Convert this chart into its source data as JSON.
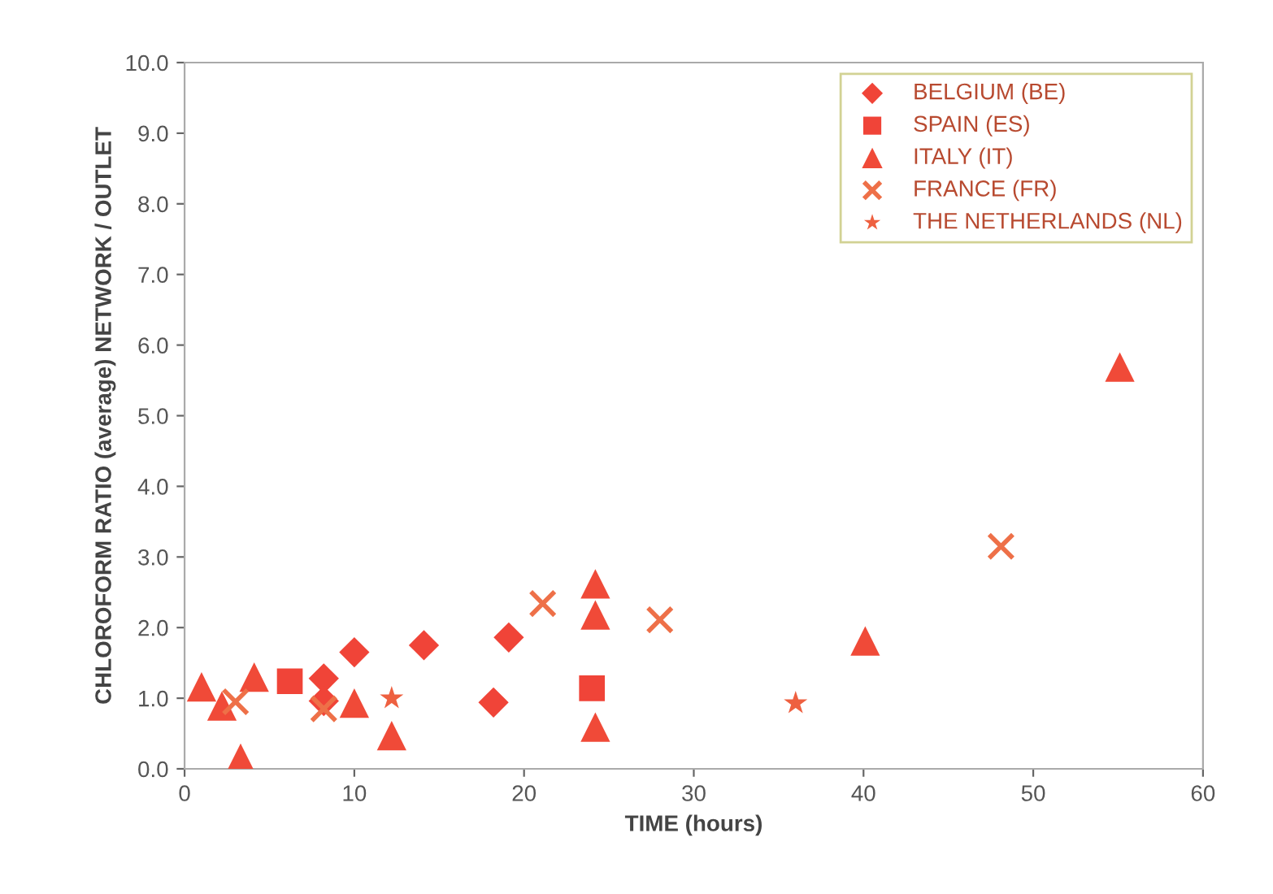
{
  "chart_data": {
    "type": "scatter",
    "xlabel": "TIME (hours)",
    "ylabel": "CHLOROFORM RATIO (average) NETWORK / OUTLET",
    "xlim": [
      0,
      60
    ],
    "ylim": [
      0,
      10
    ],
    "xticks": [
      0,
      10,
      20,
      30,
      40,
      50,
      60
    ],
    "yticks": [
      {
        "value": 0,
        "label": "0.0"
      },
      {
        "value": 1,
        "label": "1.0"
      },
      {
        "value": 2,
        "label": "2.0"
      },
      {
        "value": 3,
        "label": "3.0"
      },
      {
        "value": 4,
        "label": "4.0"
      },
      {
        "value": 5,
        "label": "5.0"
      },
      {
        "value": 6,
        "label": "6.0"
      },
      {
        "value": 7,
        "label": "7.0"
      },
      {
        "value": 8,
        "label": "8.0"
      },
      {
        "value": 9,
        "label": "9.0"
      },
      {
        "value": 10,
        "label": "10.0"
      }
    ],
    "grid": false,
    "legend": "top right",
    "series": [
      {
        "name": "BELGIUM (BE)",
        "color": "#f04438",
        "marker": "diamond",
        "x": [
          8.2,
          8.2,
          10,
          14.1,
          18.2,
          19.1
        ],
        "values": [
          1.28,
          0.96,
          1.65,
          1.75,
          0.94,
          1.86
        ]
      },
      {
        "name": "SPAIN (ES)",
        "color": "#f04438",
        "marker": "square",
        "x": [
          6.2,
          24
        ],
        "values": [
          1.24,
          1.14
        ]
      },
      {
        "name": "ITALY (IT)",
        "color": "#f04a38",
        "marker": "triangle",
        "x": [
          1,
          2.2,
          3.3,
          4.1,
          10,
          12.2,
          24.2,
          24.2,
          24.2,
          40.1,
          55.1
        ],
        "values": [
          1.16,
          0.89,
          0.15,
          1.3,
          0.93,
          0.47,
          2.62,
          2.18,
          0.59,
          1.81,
          5.69
        ]
      },
      {
        "name": "FRANCE (FR)",
        "color": "#ee7048",
        "marker": "cross",
        "x": [
          3,
          8.2,
          21.1,
          28,
          48.1
        ],
        "values": [
          0.95,
          0.85,
          2.34,
          2.11,
          3.15
        ]
      },
      {
        "name": "THE NETHERLANDS (NL)",
        "color": "#ee6040",
        "marker": "star",
        "x": [
          12.2,
          36
        ],
        "values": [
          1.0,
          0.93
        ]
      }
    ]
  }
}
